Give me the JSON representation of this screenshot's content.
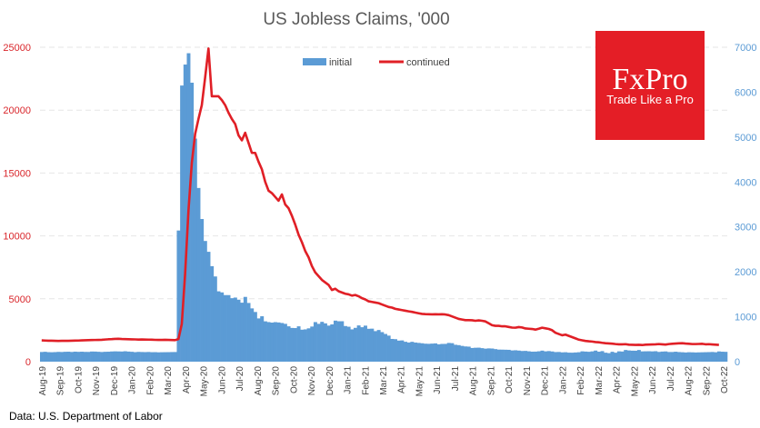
{
  "chart_data": {
    "type": "bar+line",
    "title": "US Jobless Claims, '000",
    "source": "Data: U.S. Department of Labor",
    "left_axis": {
      "ticks": [
        "0",
        "5000",
        "10000",
        "15000",
        "20000",
        "25000"
      ],
      "range": [
        0,
        25000
      ],
      "color": "#d9262b"
    },
    "right_axis": {
      "ticks": [
        "0",
        "1000",
        "2000",
        "3000",
        "4000",
        "5000",
        "6000",
        "7000"
      ],
      "range": [
        0,
        7000
      ],
      "color": "#5b9bd5"
    },
    "x_tick_labels": [
      "Aug-19",
      "Sep-19",
      "Oct-19",
      "Nov-19",
      "Dec-19",
      "Jan-20",
      "Feb-20",
      "Mar-20",
      "Apr-20",
      "May-20",
      "Jun-20",
      "Jul-20",
      "Aug-20",
      "Sep-20",
      "Oct-20",
      "Nov-20",
      "Dec-20",
      "Jan-21",
      "Feb-21",
      "Mar-21",
      "Apr-21",
      "May-21",
      "Jun-21",
      "Jul-21",
      "Aug-21",
      "Sep-21",
      "Oct-21",
      "Nov-21",
      "Dec-21",
      "Jan-22",
      "Feb-22",
      "Mar-22",
      "Apr-22",
      "May-22",
      "Jun-22",
      "Jul-22",
      "Aug-22",
      "Sep-22",
      "Oct-22"
    ],
    "legend": [
      {
        "name": "initial",
        "color": "#5b9bd5",
        "axis": "right",
        "kind": "bar"
      },
      {
        "name": "continued",
        "color": "#e01f26",
        "axis": "left",
        "kind": "line"
      }
    ],
    "series": [
      {
        "name": "initial",
        "values": [
          215,
          220,
          212,
          210,
          213,
          218,
          215,
          220,
          222,
          216,
          223,
          219,
          222,
          218,
          217,
          226,
          225,
          220,
          215,
          220,
          222,
          227,
          230,
          228,
          226,
          232,
          225,
          220,
          212,
          218,
          215,
          213,
          216,
          211,
          212,
          208,
          210,
          211,
          212,
          214,
          215,
          2920,
          6148,
          6615,
          6867,
          6211,
          4966,
          3867,
          3176,
          2687,
          2446,
          2126,
          1897,
          1566,
          1542,
          1482,
          1482,
          1413,
          1427,
          1380,
          1313,
          1442,
          1307,
          1186,
          1106,
          963,
          1011,
          898,
          881,
          870,
          880,
          873,
          861,
          842,
          787,
          751,
          748,
          787,
          712,
          719,
          742,
          782,
          881,
          842,
          887,
          853,
          803,
          830,
          914,
          900,
          900,
          793,
          778,
          719,
          753,
          807,
          767,
          802,
          732,
          735,
          680,
          705,
          658,
          617,
          580,
          506,
          501,
          469,
          473,
          443,
          427,
          442,
          426,
          418,
          410,
          400,
          397,
          402,
          407,
          387,
          395,
          396,
          417,
          412,
          376,
          368,
          351,
          339,
          335,
          305,
          310,
          312,
          301,
          290,
          296,
          293,
          280,
          269,
          268,
          266,
          264,
          250,
          254,
          247,
          238,
          240,
          231,
          223,
          224,
          231,
          246,
          230,
          236,
          227,
          214,
          216,
          207,
          210,
          201,
          200,
          205,
          210,
          230,
          225,
          220,
          229,
          247,
          222,
          235,
          200,
          190,
          220,
          200,
          230,
          226,
          260,
          250,
          245,
          244,
          260,
          229,
          231,
          232,
          229,
          233,
          217,
          225,
          228,
          215,
          215,
          222,
          214,
          210,
          205,
          210,
          208,
          205,
          207,
          209,
          211,
          213,
          216,
          210,
          228,
          222,
          219
        ],
        "color": "#5b9bd5"
      },
      {
        "name": "continued",
        "values": [
          1690,
          1680,
          1670,
          1665,
          1660,
          1650,
          1655,
          1658,
          1660,
          1670,
          1675,
          1680,
          1690,
          1700,
          1710,
          1720,
          1725,
          1730,
          1740,
          1760,
          1780,
          1790,
          1810,
          1820,
          1800,
          1790,
          1780,
          1775,
          1770,
          1760,
          1765,
          1758,
          1752,
          1745,
          1735,
          1728,
          1732,
          1740,
          1730,
          1720,
          1710,
          1800,
          3000,
          7000,
          12000,
          15800,
          18100,
          19300,
          20400,
          22600,
          24900,
          21100,
          21100,
          21100,
          20800,
          20400,
          19800,
          19300,
          18900,
          18000,
          17600,
          18200,
          17400,
          16600,
          16600,
          15900,
          15300,
          14300,
          13600,
          13400,
          13100,
          12800,
          13300,
          12500,
          12200,
          11600,
          10900,
          10100,
          9500,
          8800,
          8300,
          7600,
          7100,
          6800,
          6500,
          6300,
          6100,
          5700,
          5800,
          5600,
          5500,
          5400,
          5350,
          5250,
          5300,
          5200,
          5050,
          4950,
          4800,
          4750,
          4700,
          4650,
          4550,
          4450,
          4350,
          4300,
          4200,
          4150,
          4100,
          4050,
          4000,
          3960,
          3900,
          3850,
          3800,
          3780,
          3770,
          3760,
          3770,
          3760,
          3770,
          3750,
          3700,
          3600,
          3500,
          3400,
          3350,
          3300,
          3300,
          3290,
          3250,
          3280,
          3250,
          3200,
          3050,
          2900,
          2850,
          2850,
          2810,
          2810,
          2760,
          2710,
          2700,
          2750,
          2720,
          2640,
          2620,
          2600,
          2550,
          2620,
          2700,
          2650,
          2600,
          2500,
          2300,
          2200,
          2100,
          2150,
          2050,
          1950,
          1850,
          1750,
          1700,
          1650,
          1620,
          1600,
          1560,
          1540,
          1500,
          1470,
          1450,
          1430,
          1400,
          1380,
          1380,
          1390,
          1350,
          1340,
          1330,
          1340,
          1320,
          1350,
          1360,
          1370,
          1380,
          1400,
          1380,
          1360,
          1400,
          1420,
          1440,
          1460,
          1470,
          1440,
          1420,
          1400,
          1400,
          1410,
          1420,
          1380,
          1390,
          1370,
          1350,
          1330
        ],
        "color": "#e01f26"
      }
    ],
    "grid": true
  },
  "brand": {
    "name": "FxPro",
    "tagline": "Trade Like a Pro",
    "bg_color": "#e41e26"
  }
}
